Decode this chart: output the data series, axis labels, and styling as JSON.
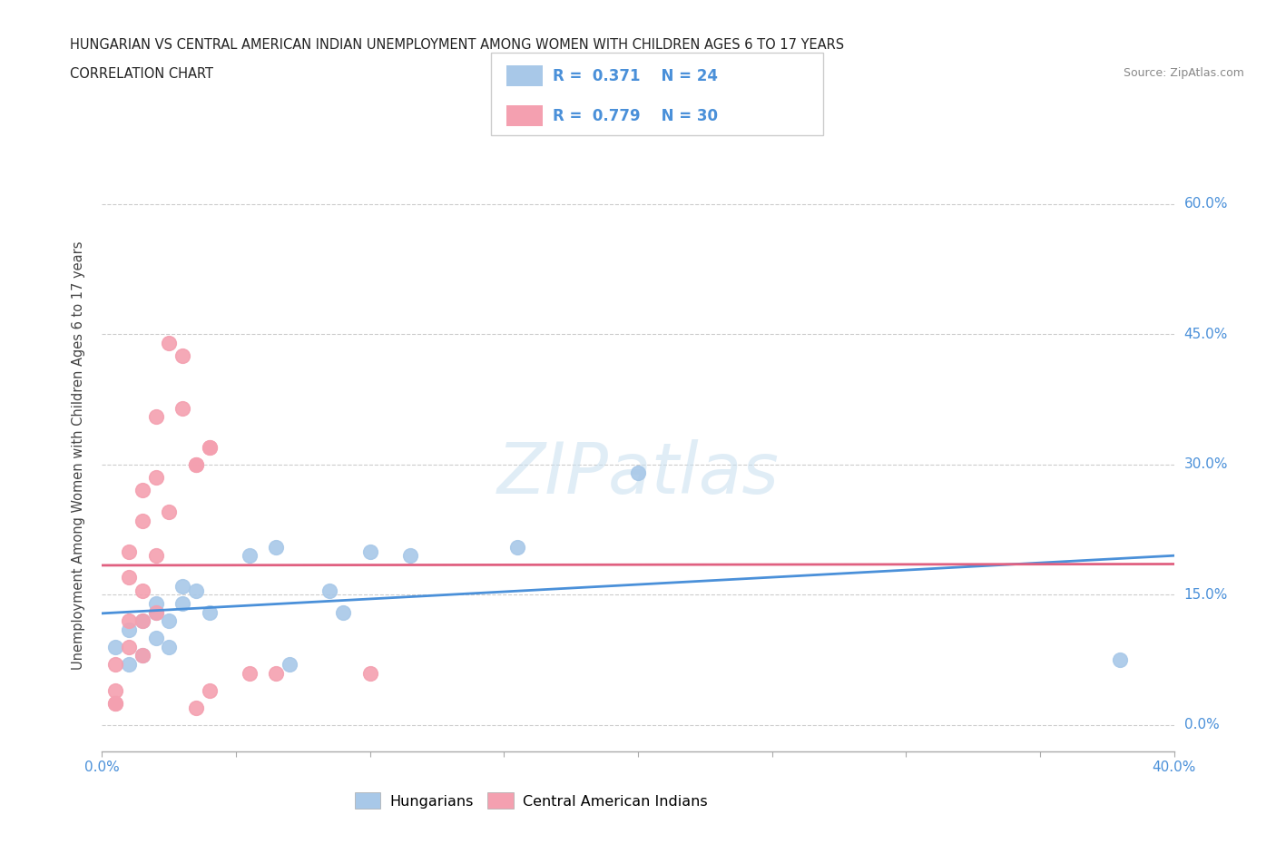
{
  "title_line1": "HUNGARIAN VS CENTRAL AMERICAN INDIAN UNEMPLOYMENT AMONG WOMEN WITH CHILDREN AGES 6 TO 17 YEARS",
  "title_line2": "CORRELATION CHART",
  "source_text": "Source: ZipAtlas.com",
  "ylabel": "Unemployment Among Women with Children Ages 6 to 17 years",
  "xmin": 0.0,
  "xmax": 0.4,
  "ymin": -0.03,
  "ymax": 0.65,
  "yticks": [
    0.0,
    0.15,
    0.3,
    0.45,
    0.6
  ],
  "xtick_positions": [
    0.0,
    0.05,
    0.1,
    0.15,
    0.2,
    0.25,
    0.3,
    0.35,
    0.4
  ],
  "hungarian_color": "#a8c8e8",
  "hungarian_line_color": "#4a90d9",
  "ca_indian_color": "#f4a0b0",
  "ca_indian_line_color": "#e06080",
  "R_hungarian": 0.371,
  "N_hungarian": 24,
  "R_ca_indian": 0.779,
  "N_ca_indian": 30,
  "watermark_text": "ZIPatlas",
  "background_color": "#ffffff",
  "grid_color": "#cccccc",
  "hungarian_scatter": [
    [
      0.005,
      0.09
    ],
    [
      0.01,
      0.07
    ],
    [
      0.01,
      0.11
    ],
    [
      0.015,
      0.08
    ],
    [
      0.015,
      0.12
    ],
    [
      0.02,
      0.1
    ],
    [
      0.02,
      0.13
    ],
    [
      0.02,
      0.14
    ],
    [
      0.025,
      0.09
    ],
    [
      0.025,
      0.12
    ],
    [
      0.03,
      0.14
    ],
    [
      0.03,
      0.16
    ],
    [
      0.035,
      0.155
    ],
    [
      0.04,
      0.13
    ],
    [
      0.055,
      0.195
    ],
    [
      0.065,
      0.205
    ],
    [
      0.07,
      0.07
    ],
    [
      0.085,
      0.155
    ],
    [
      0.09,
      0.13
    ],
    [
      0.1,
      0.2
    ],
    [
      0.115,
      0.195
    ],
    [
      0.155,
      0.205
    ],
    [
      0.2,
      0.29
    ],
    [
      0.38,
      0.075
    ]
  ],
  "ca_indian_scatter": [
    [
      0.005,
      0.04
    ],
    [
      0.005,
      0.07
    ],
    [
      0.01,
      0.09
    ],
    [
      0.01,
      0.12
    ],
    [
      0.01,
      0.17
    ],
    [
      0.01,
      0.2
    ],
    [
      0.015,
      0.08
    ],
    [
      0.015,
      0.12
    ],
    [
      0.015,
      0.155
    ],
    [
      0.015,
      0.235
    ],
    [
      0.015,
      0.27
    ],
    [
      0.02,
      0.13
    ],
    [
      0.02,
      0.195
    ],
    [
      0.02,
      0.285
    ],
    [
      0.02,
      0.355
    ],
    [
      0.025,
      0.245
    ],
    [
      0.025,
      0.44
    ],
    [
      0.03,
      0.365
    ],
    [
      0.03,
      0.425
    ],
    [
      0.035,
      0.3
    ],
    [
      0.035,
      0.3
    ],
    [
      0.04,
      0.32
    ],
    [
      0.04,
      0.32
    ],
    [
      0.005,
      0.025
    ],
    [
      0.035,
      0.02
    ],
    [
      0.04,
      0.04
    ],
    [
      0.055,
      0.06
    ],
    [
      0.065,
      0.06
    ],
    [
      0.1,
      0.06
    ],
    [
      0.005,
      0.025
    ]
  ]
}
